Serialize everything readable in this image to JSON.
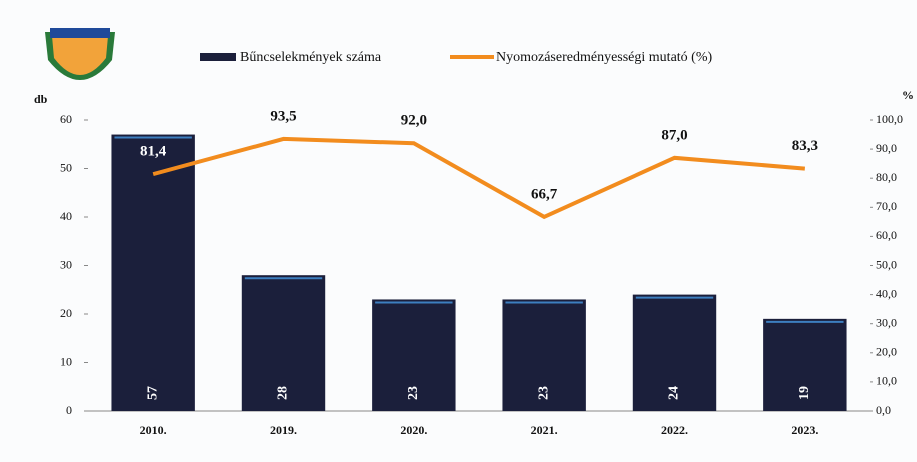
{
  "chart_data": {
    "type": "bar",
    "categories": [
      "2010.",
      "2019.",
      "2020.",
      "2021.",
      "2022.",
      "2023."
    ],
    "ylabel": "db",
    "y2label": "%",
    "ylim": [
      0,
      60
    ],
    "yticks": [
      0,
      10,
      20,
      30,
      40,
      50,
      60
    ],
    "y2lim": [
      0,
      100
    ],
    "y2ticks": [
      {
        "value": 0,
        "label": "0,0"
      },
      {
        "value": 10,
        "label": "10,0"
      },
      {
        "value": 20,
        "label": "20,0"
      },
      {
        "value": 30,
        "label": "30,0"
      },
      {
        "value": 40,
        "label": "40,0"
      },
      {
        "value": 50,
        "label": "50,0"
      },
      {
        "value": 60,
        "label": "60,0"
      },
      {
        "value": 70,
        "label": "70,0"
      },
      {
        "value": 80,
        "label": "80,0"
      },
      {
        "value": 90,
        "label": "90,0"
      },
      {
        "value": 100,
        "label": "100,0"
      }
    ],
    "legend": "top",
    "series": [
      {
        "name": "Bűncselekmények száma",
        "type": "bar",
        "color": "#1b1f3b",
        "values": [
          57,
          28,
          23,
          23,
          24,
          19
        ]
      },
      {
        "name": "Nyomozáseredményességi mutató (%)",
        "type": "line",
        "axis": "y2",
        "color": "#f28c1e",
        "values": [
          81.4,
          93.5,
          92.0,
          66.7,
          87.0,
          83.3
        ],
        "value_labels": [
          "81,4",
          "93,5",
          "92,0",
          "66,7",
          "87,0",
          "83,3"
        ]
      }
    ]
  }
}
